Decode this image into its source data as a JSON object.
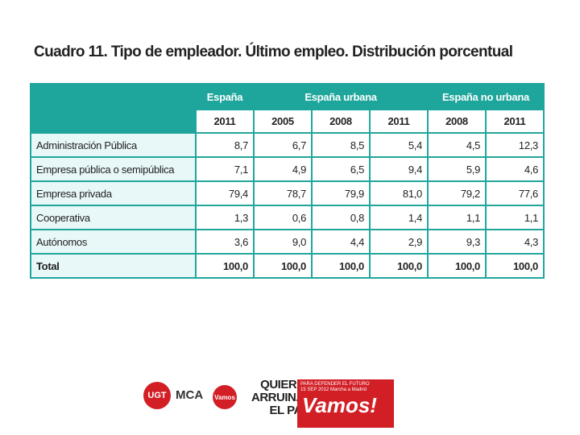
{
  "header": {
    "title": "Cuadro 11. Tipo de empleador. Último empleo. Distribución porcentual"
  },
  "table": {
    "groups": [
      {
        "label": "España",
        "span": 1
      },
      {
        "label": "España urbana",
        "span": 3
      },
      {
        "label": "España no urbana",
        "span": 2
      }
    ],
    "years": [
      "2011",
      "2005",
      "2008",
      "2011",
      "2008",
      "2011"
    ],
    "rows": [
      [
        "Administración Pública",
        "8,7",
        "6,7",
        "8,5",
        "5,4",
        "4,5",
        "12,3"
      ],
      [
        "Empresa pública o semipública",
        "7,1",
        "4,9",
        "6,5",
        "9,4",
        "5,9",
        "4,6"
      ],
      [
        "Empresa privada",
        "79,4",
        "78,7",
        "79,9",
        "81,0",
        "79,2",
        "77,6"
      ],
      [
        "Cooperativa",
        "1,3",
        "0,6",
        "0,8",
        "1,4",
        "1,1",
        "1,1"
      ],
      [
        "Autónomos",
        "3,6",
        "9,0",
        "4,4",
        "2,9",
        "9,3",
        "4,3"
      ],
      [
        "Total",
        "100,0",
        "100,0",
        "100,0",
        "100,0",
        "100,0",
        "100,0"
      ]
    ]
  },
  "footer": {
    "logos": [
      "UGT",
      "MCA",
      "Vamos"
    ],
    "slogan": [
      "QUIEREN",
      "ARRUINAR",
      "EL PAÍS"
    ],
    "banner_small": [
      "PARA DEFENDER EL FUTURO",
      "15 SEP 2012  Marcha a Madrid"
    ],
    "banner_big": "Vamos!"
  }
}
